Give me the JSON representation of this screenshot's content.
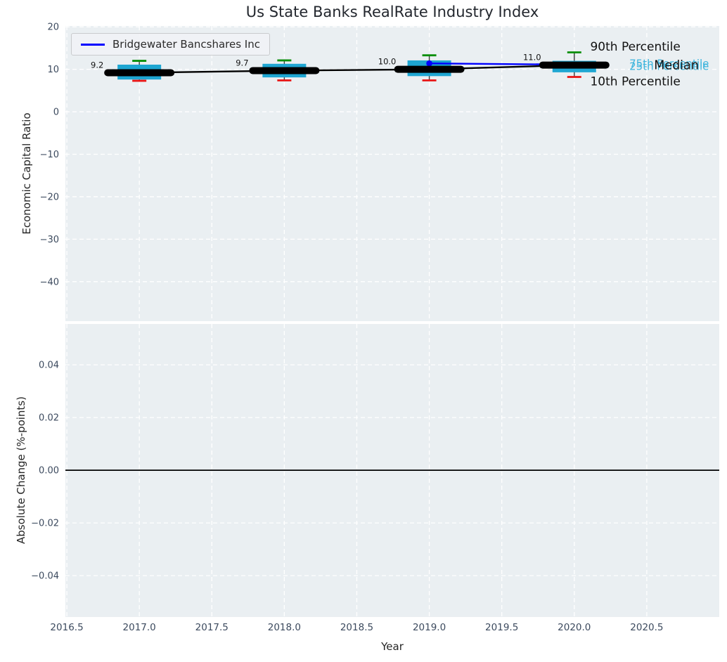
{
  "chart_data": {
    "type": "boxplot",
    "title": "Us State Banks RealRate Industry Index",
    "xlabel": "Year",
    "xlim": [
      2016.49,
      2021.0
    ],
    "xticks": {
      "values": [
        2016.5,
        2017.0,
        2017.5,
        2018.0,
        2018.5,
        2019.0,
        2019.5,
        2020.0,
        2020.5
      ],
      "labels": [
        "2016.5",
        "2017.0",
        "2017.5",
        "2018.0",
        "2018.5",
        "2019.0",
        "2019.5",
        "2020.0",
        "2020.5"
      ]
    },
    "top_panel": {
      "ylabel": "Economic Capital Ratio",
      "ylim": [
        -49.3,
        20.2
      ],
      "yticks": {
        "values": [
          20,
          10,
          0,
          -10,
          -20,
          -30,
          -40
        ],
        "labels": [
          "20",
          "10",
          "0",
          "−10",
          "−20",
          "−30",
          "−40"
        ]
      },
      "boxes": [
        {
          "x": 2017,
          "median": 9.2,
          "q1": 7.6,
          "q3": 11.1,
          "p10": 7.3,
          "p90": 12.0,
          "label": "9.2"
        },
        {
          "x": 2018,
          "median": 9.7,
          "q1": 8.1,
          "q3": 11.3,
          "p10": 7.4,
          "p90": 12.1,
          "label": "9.7"
        },
        {
          "x": 2019,
          "median": 10.0,
          "q1": 8.4,
          "q3": 12.1,
          "p10": 7.4,
          "p90": 13.3,
          "label": "10.0"
        },
        {
          "x": 2020,
          "median": 11.0,
          "q1": 9.3,
          "q3": 12.0,
          "p10": 8.2,
          "p90": 14.0,
          "label": "11.0"
        }
      ],
      "median_trend": [
        [
          2017,
          9.2
        ],
        [
          2018,
          9.7
        ],
        [
          2019,
          10.0
        ],
        [
          2020,
          11.0
        ]
      ],
      "company_series": {
        "name": "Bridgewater Bancshares Inc",
        "color": "#0000ff",
        "points": [
          [
            2019,
            11.4
          ],
          [
            2020,
            11.1
          ]
        ]
      },
      "annotations": [
        {
          "text": "90th Percentile",
          "x": 2020.11,
          "y": 15.4,
          "color": "#111111",
          "size": 17
        },
        {
          "text": "75th Percentile",
          "x": 2020.38,
          "y": 11.4,
          "color": "#3fb5dd",
          "size": 15
        },
        {
          "text": "25th Percentile",
          "x": 2020.38,
          "y": 10.75,
          "color": "#3fb5dd",
          "size": 15
        },
        {
          "text": "Median",
          "x": 2020.55,
          "y": 11.07,
          "color": "#111111",
          "size": 17.5
        },
        {
          "text": "10th Percentile",
          "x": 2020.11,
          "y": 7.25,
          "color": "#111111",
          "size": 17
        }
      ]
    },
    "bottom_panel": {
      "ylabel": "Absolute Change (%-points)",
      "ylim": [
        -0.0557,
        0.0555
      ],
      "yticks": {
        "values": [
          0.04,
          0.02,
          0.0,
          -0.02,
          -0.04
        ],
        "labels": [
          "0.04",
          "0.02",
          "0.00",
          "−0.02",
          "−0.04"
        ]
      },
      "zero_line_y": 0.0
    },
    "colors": {
      "figure_bg": "#ffffff",
      "axes_bg": "#eaeff2",
      "grid": "#ffffff",
      "tick_label": "#3c4a5e",
      "box_fill": "#1ea6d2",
      "cap_high": "#0a8f0a",
      "cap_low": "#e81414",
      "whisker": "#3d3d3d",
      "median": "#000000",
      "company": "#0000ff",
      "zero_line": "#000000"
    }
  }
}
